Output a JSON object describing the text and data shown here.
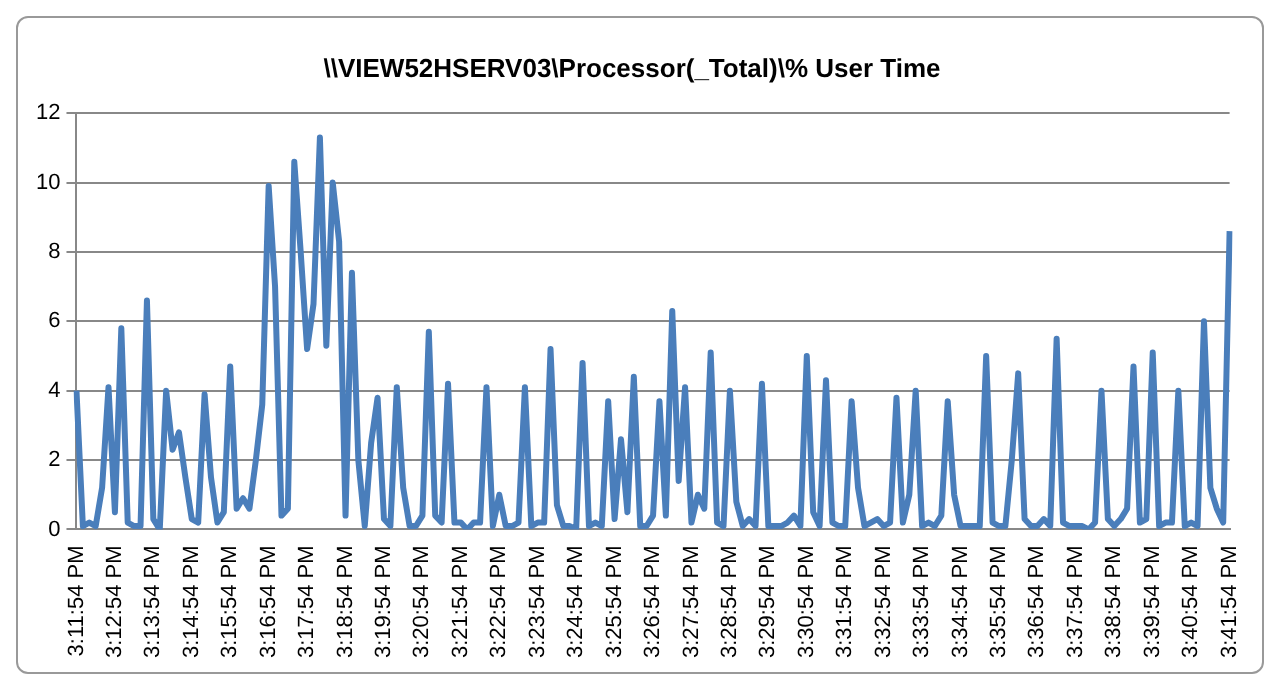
{
  "chart_data": {
    "type": "line",
    "title": "\\\\VIEW52HSERV03\\Processor(_Total)\\% User Time",
    "categories": [
      "3:11:54 PM",
      null,
      null,
      null,
      null,
      null,
      "3:12:54 PM",
      null,
      null,
      null,
      null,
      null,
      "3:13:54 PM",
      null,
      null,
      null,
      null,
      null,
      "3:14:54 PM",
      null,
      null,
      null,
      null,
      null,
      "3:15:54 PM",
      null,
      null,
      null,
      null,
      null,
      "3:16:54 PM",
      null,
      null,
      null,
      null,
      null,
      "3:17:54 PM",
      null,
      null,
      null,
      null,
      null,
      "3:18:54 PM",
      null,
      null,
      null,
      null,
      null,
      "3:19:54 PM",
      null,
      null,
      null,
      null,
      null,
      "3:20:54 PM",
      null,
      null,
      null,
      null,
      null,
      "3:21:54 PM",
      null,
      null,
      null,
      null,
      null,
      "3:22:54 PM",
      null,
      null,
      null,
      null,
      null,
      "3:23:54 PM",
      null,
      null,
      null,
      null,
      null,
      "3:24:54 PM",
      null,
      null,
      null,
      null,
      null,
      "3:25:54 PM",
      null,
      null,
      null,
      null,
      null,
      "3:26:54 PM",
      null,
      null,
      null,
      null,
      null,
      "3:27:54 PM",
      null,
      null,
      null,
      null,
      null,
      "3:28:54 PM",
      null,
      null,
      null,
      null,
      null,
      "3:29:54 PM",
      null,
      null,
      null,
      null,
      null,
      "3:30:54 PM",
      null,
      null,
      null,
      null,
      null,
      "3:31:54 PM",
      null,
      null,
      null,
      null,
      null,
      "3:32:54 PM",
      null,
      null,
      null,
      null,
      null,
      "3:33:54 PM",
      null,
      null,
      null,
      null,
      null,
      "3:34:54 PM",
      null,
      null,
      null,
      null,
      null,
      "3:35:54 PM",
      null,
      null,
      null,
      null,
      null,
      "3:36:54 PM",
      null,
      null,
      null,
      null,
      null,
      "3:37:54 PM",
      null,
      null,
      null,
      null,
      null,
      "3:38:54 PM",
      null,
      null,
      null,
      null,
      null,
      "3:39:54 PM",
      null,
      null,
      null,
      null,
      null,
      "3:40:54 PM",
      null,
      null,
      null,
      null,
      null,
      "3:41:54 PM"
    ],
    "series": [
      {
        "color": "#4a7ebb",
        "values": [
          4.0,
          0.1,
          0.2,
          0.1,
          1.2,
          4.1,
          0.5,
          5.8,
          0.2,
          0.1,
          0.1,
          6.6,
          0.3,
          0.0,
          4.0,
          2.3,
          2.8,
          1.5,
          0.3,
          0.2,
          3.9,
          1.5,
          0.2,
          0.5,
          4.7,
          0.6,
          0.9,
          0.6,
          2.0,
          3.6,
          9.9,
          7.0,
          0.4,
          0.6,
          10.6,
          8.0,
          5.2,
          6.5,
          11.3,
          5.3,
          10.0,
          8.3,
          0.4,
          7.4,
          2.0,
          0.1,
          2.5,
          3.8,
          0.3,
          0.1,
          4.1,
          1.2,
          0.1,
          0.1,
          0.4,
          5.7,
          0.4,
          0.2,
          4.2,
          0.2,
          0.2,
          0.0,
          0.2,
          0.2,
          4.1,
          0.1,
          1.0,
          0.1,
          0.1,
          0.2,
          4.1,
          0.1,
          0.2,
          0.2,
          5.2,
          0.7,
          0.1,
          0.1,
          0.0,
          4.8,
          0.1,
          0.2,
          0.1,
          3.7,
          0.3,
          2.6,
          0.5,
          4.4,
          0.1,
          0.1,
          0.4,
          3.7,
          0.4,
          6.3,
          1.4,
          4.1,
          0.2,
          1.0,
          0.6,
          5.1,
          0.2,
          0.1,
          4.0,
          0.8,
          0.1,
          0.3,
          0.1,
          4.2,
          0.1,
          0.1,
          0.1,
          0.2,
          0.4,
          0.1,
          5.0,
          0.5,
          0.1,
          4.3,
          0.2,
          0.1,
          0.1,
          3.7,
          1.2,
          0.1,
          0.2,
          0.3,
          0.1,
          0.2,
          3.8,
          0.2,
          1.0,
          4.0,
          0.1,
          0.2,
          0.1,
          0.4,
          3.7,
          1.0,
          0.1,
          0.1,
          0.1,
          0.1,
          5.0,
          0.2,
          0.1,
          0.1,
          2.0,
          4.5,
          0.3,
          0.1,
          0.1,
          0.3,
          0.1,
          5.5,
          0.2,
          0.1,
          0.1,
          0.1,
          0.0,
          0.2,
          4.0,
          0.3,
          0.1,
          0.3,
          0.6,
          4.7,
          0.2,
          0.3,
          5.1,
          0.1,
          0.2,
          0.2,
          4.0,
          0.1,
          0.2,
          0.1,
          6.0,
          1.2,
          0.6,
          0.2,
          8.6
        ]
      }
    ],
    "ylim": [
      0,
      12
    ],
    "yticks": [
      0,
      2,
      4,
      6,
      8,
      10,
      12
    ],
    "grid": "y",
    "legend": false,
    "marker": "none",
    "line_style": "solid"
  }
}
